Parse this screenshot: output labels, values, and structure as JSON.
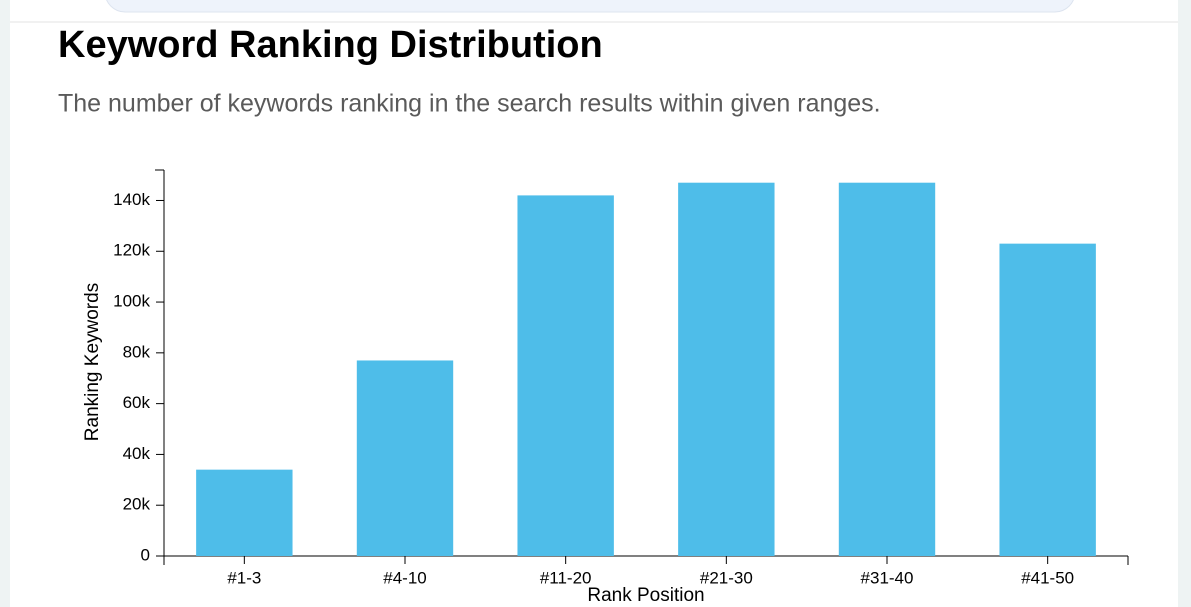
{
  "chart_data": {
    "type": "bar",
    "title": "Keyword Ranking Distribution",
    "subtitle": "The number of keywords ranking in the search results within given ranges.",
    "x_label": "Rank Position",
    "y_label": "Ranking Keywords",
    "categories": [
      "#1-3",
      "#4-10",
      "#11-20",
      "#21-30",
      "#31-40",
      "#41-50"
    ],
    "values": [
      34000,
      77000,
      142000,
      147000,
      147000,
      123000
    ],
    "color": "#4ebde9",
    "ylim": [
      0,
      152000
    ],
    "yticks": [
      0,
      {
        "value": 20000,
        "label": "20k"
      },
      {
        "value": 40000,
        "label": "40k"
      },
      {
        "value": 60000,
        "label": "60k"
      },
      {
        "value": 80000,
        "label": "80k"
      },
      {
        "value": 100000,
        "label": "100k"
      },
      {
        "value": 120000,
        "label": "120k"
      },
      {
        "value": 140000,
        "label": "140k"
      }
    ],
    "grid": false
  }
}
